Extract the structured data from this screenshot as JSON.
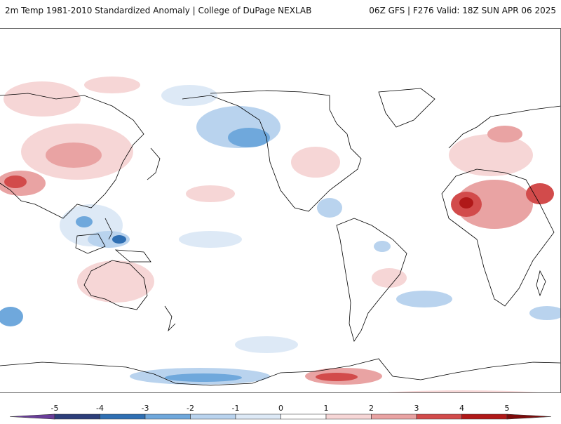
{
  "header": {
    "title_left": "2m Temp 1981-2010 Standardized Anomaly | College of DuPage NEXLAB",
    "title_right": "06Z GFS | F276 Valid: 18Z SUN APR 06 2025"
  },
  "colorbar": {
    "ticks": [
      "-5",
      "-4",
      "-3",
      "-2",
      "-1",
      "0",
      "1",
      "2",
      "3",
      "4",
      "5"
    ],
    "colors": [
      "#6a3d9a",
      "#2c3e7a",
      "#2f6fb3",
      "#6fa8dc",
      "#b9d3ee",
      "#dde9f6",
      "#ffffff",
      "#f6d6d6",
      "#e9a3a3",
      "#d24b4b",
      "#b01818",
      "#7d0a0a",
      "#f2c200"
    ]
  },
  "map": {
    "projection": "equirectangular",
    "center_longitude": "180"
  }
}
